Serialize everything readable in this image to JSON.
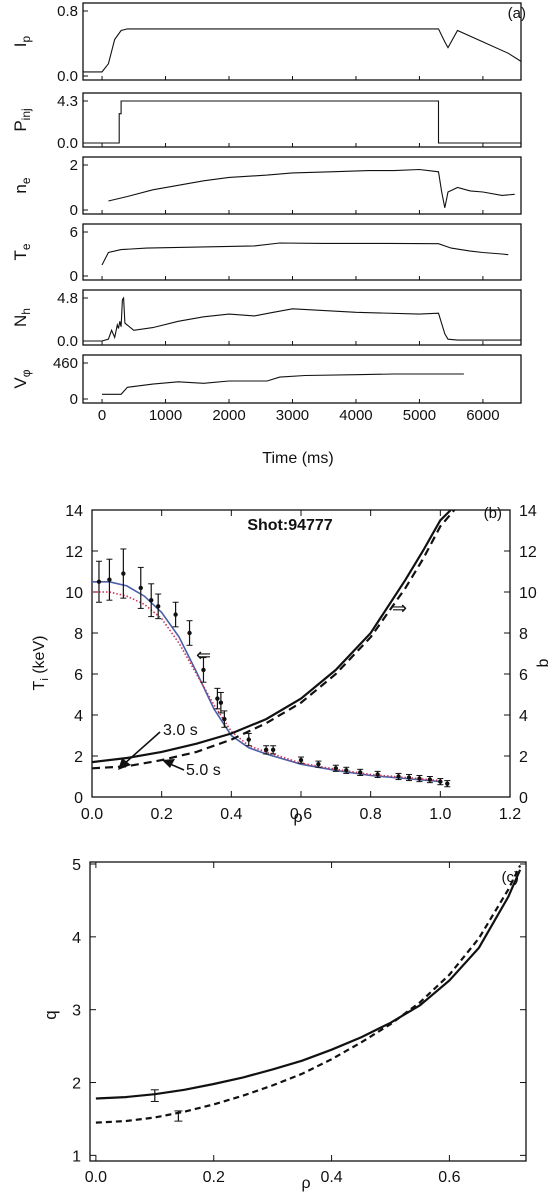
{
  "figure_labels": {
    "a": "(a)",
    "b": "(b)",
    "c": "(c)"
  },
  "chart_data": [
    {
      "type": "line",
      "panel": "a",
      "xlabel": "Time (ms)",
      "xlim": [
        -300,
        6600
      ],
      "xticks": [
        0,
        1000,
        2000,
        3000,
        4000,
        5000,
        6000
      ],
      "subplots": [
        {
          "ylabel": "I",
          "ylabel_sub": "p",
          "yticks": [
            "0.8",
            "0.0"
          ],
          "ylim": [
            0,
            0.8
          ],
          "x": [
            -300,
            0,
            100,
            200,
            300,
            400,
            1000,
            2000,
            3000,
            4000,
            5000,
            5300,
            5400,
            5450,
            5600,
            6000,
            6400,
            6600
          ],
          "y": [
            0.05,
            0.05,
            0.15,
            0.45,
            0.56,
            0.58,
            0.58,
            0.58,
            0.58,
            0.58,
            0.58,
            0.58,
            0.42,
            0.35,
            0.56,
            0.42,
            0.28,
            0.18
          ]
        },
        {
          "ylabel": "P",
          "ylabel_sub": "inj",
          "yticks": [
            "4.3",
            "0.0"
          ],
          "ylim": [
            0,
            4.3
          ],
          "x": [
            -300,
            270,
            270,
            300,
            300,
            5300,
            5300,
            6600
          ],
          "y": [
            0.0,
            0.0,
            3.0,
            3.0,
            4.3,
            4.3,
            0.0,
            0.0
          ]
        },
        {
          "ylabel": "n",
          "ylabel_sub": "e",
          "yticks": [
            "2",
            "0"
          ],
          "ylim": [
            0,
            2
          ],
          "x": [
            100,
            400,
            800,
            1200,
            1600,
            2000,
            2600,
            3000,
            3600,
            4200,
            4600,
            5000,
            5300,
            5350,
            5400,
            5450,
            5600,
            5800,
            6000,
            6300,
            6500
          ],
          "y": [
            0.4,
            0.6,
            0.9,
            1.1,
            1.3,
            1.45,
            1.55,
            1.65,
            1.7,
            1.75,
            1.75,
            1.8,
            1.7,
            0.8,
            0.1,
            0.8,
            1.0,
            0.85,
            0.8,
            0.65,
            0.7
          ]
        },
        {
          "ylabel": "T",
          "ylabel_sub": "e",
          "yticks": [
            "6",
            "0"
          ],
          "ylim": [
            0,
            6
          ],
          "x": [
            0,
            100,
            300,
            700,
            1200,
            1800,
            2400,
            2800,
            3500,
            4500,
            5300,
            5500,
            5800,
            6000,
            6300,
            6400
          ],
          "y": [
            1.5,
            3.2,
            3.6,
            3.8,
            3.9,
            4.0,
            4.1,
            4.5,
            4.45,
            4.45,
            4.4,
            3.8,
            3.4,
            3.2,
            3.0,
            2.9
          ]
        },
        {
          "ylabel": "N",
          "ylabel_sub": "h",
          "yticks": [
            "4.8",
            "0.0"
          ],
          "ylim": [
            0,
            4.8
          ],
          "x": [
            -300,
            0,
            100,
            150,
            200,
            240,
            260,
            280,
            300,
            320,
            340,
            360,
            500,
            800,
            1200,
            1600,
            2000,
            2400,
            2700,
            3000,
            4000,
            5000,
            5300,
            5400,
            5450,
            5600,
            6600
          ],
          "y": [
            0.0,
            0.0,
            0.2,
            1.2,
            0.4,
            1.8,
            1.4,
            2.2,
            1.6,
            4.6,
            4.8,
            2.0,
            1.2,
            1.5,
            2.2,
            2.7,
            3.0,
            2.8,
            3.2,
            3.6,
            3.2,
            3.0,
            3.1,
            0.8,
            0.2,
            0.1,
            0.1
          ]
        },
        {
          "ylabel": "V",
          "ylabel_sub": "φ",
          "yticks": [
            "460",
            "0"
          ],
          "ylim": [
            0,
            460
          ],
          "x": [
            0,
            300,
            400,
            800,
            1200,
            1600,
            2000,
            2600,
            2800,
            3200,
            4000,
            4600,
            5000,
            5700
          ],
          "y": [
            60,
            60,
            150,
            190,
            220,
            200,
            230,
            230,
            280,
            300,
            310,
            320,
            320,
            320
          ]
        }
      ]
    },
    {
      "type": "line",
      "panel": "b",
      "title": "Shot:94777",
      "xlabel": "ρ",
      "ylabel": "T",
      "ylabel_sub": "i",
      "ylabel_unit": "(keV)",
      "y2label": "b",
      "xlim": [
        0,
        1.2
      ],
      "ylim": [
        0,
        14
      ],
      "xticks": [
        "0.0",
        "0.2",
        "0.4",
        "0.6",
        "0.8",
        "1.0",
        "1.2"
      ],
      "yticks": [
        "0",
        "2",
        "4",
        "6",
        "8",
        "10",
        "12",
        "14"
      ],
      "annotations": {
        "t1": "3.0 s",
        "t2": "5.0 s",
        "arrow_left": "⇐",
        "arrow_right": "⇒"
      },
      "series": [
        {
          "color": "#4a5fa8",
          "x": [
            0.0,
            0.05,
            0.1,
            0.15,
            0.2,
            0.25,
            0.3,
            0.35,
            0.4,
            0.45,
            0.5,
            0.6,
            0.7,
            0.8,
            0.9,
            1.0
          ],
          "y": [
            10.5,
            10.5,
            10.3,
            9.8,
            9.0,
            7.8,
            6.1,
            4.3,
            3.0,
            2.4,
            2.1,
            1.6,
            1.3,
            1.05,
            0.9,
            0.75
          ]
        },
        {
          "color": "#cc3355",
          "x": [
            0.0,
            0.05,
            0.1,
            0.15,
            0.2,
            0.25,
            0.3,
            0.35,
            0.4,
            0.45,
            0.5,
            0.6,
            0.7,
            0.8,
            0.9,
            1.0
          ],
          "y": [
            10.0,
            10.0,
            9.8,
            9.4,
            8.7,
            7.5,
            6.0,
            4.5,
            3.2,
            2.5,
            2.2,
            1.65,
            1.35,
            1.1,
            0.95,
            0.8
          ]
        },
        {
          "axis": "b",
          "style": "solid",
          "x": [
            0.0,
            0.1,
            0.2,
            0.3,
            0.4,
            0.5,
            0.6,
            0.7,
            0.8,
            0.9,
            0.95,
            1.0,
            1.03
          ],
          "y": [
            1.7,
            1.9,
            2.2,
            2.6,
            3.1,
            3.8,
            4.8,
            6.2,
            8.0,
            10.6,
            12.0,
            13.5,
            14.0
          ]
        },
        {
          "axis": "b",
          "style": "dashed",
          "x": [
            0.0,
            0.1,
            0.2,
            0.3,
            0.4,
            0.5,
            0.6,
            0.7,
            0.8,
            0.9,
            0.95,
            1.0,
            1.04
          ],
          "y": [
            1.4,
            1.5,
            1.8,
            2.2,
            2.8,
            3.6,
            4.6,
            6.0,
            7.8,
            10.2,
            11.6,
            13.2,
            14.0
          ]
        }
      ],
      "points": [
        {
          "x": 0.02,
          "y": 10.5,
          "err": 1.0
        },
        {
          "x": 0.05,
          "y": 10.6,
          "err": 1.0
        },
        {
          "x": 0.09,
          "y": 10.9,
          "err": 1.2
        },
        {
          "x": 0.14,
          "y": 10.2,
          "err": 1.0
        },
        {
          "x": 0.17,
          "y": 9.6,
          "err": 0.8
        },
        {
          "x": 0.19,
          "y": 9.3,
          "err": 0.6
        },
        {
          "x": 0.24,
          "y": 8.9,
          "err": 0.6
        },
        {
          "x": 0.28,
          "y": 8.0,
          "err": 0.6
        },
        {
          "x": 0.32,
          "y": 6.2,
          "err": 0.6
        },
        {
          "x": 0.36,
          "y": 4.8,
          "err": 0.5
        },
        {
          "x": 0.37,
          "y": 4.6,
          "err": 0.5
        },
        {
          "x": 0.38,
          "y": 3.8,
          "err": 0.4
        },
        {
          "x": 0.45,
          "y": 2.8,
          "err": 0.3
        },
        {
          "x": 0.5,
          "y": 2.3,
          "err": 0.2
        },
        {
          "x": 0.52,
          "y": 2.3,
          "err": 0.2
        },
        {
          "x": 0.6,
          "y": 1.8,
          "err": 0.15
        },
        {
          "x": 0.65,
          "y": 1.6,
          "err": 0.15
        },
        {
          "x": 0.7,
          "y": 1.4,
          "err": 0.15
        },
        {
          "x": 0.73,
          "y": 1.3,
          "err": 0.15
        },
        {
          "x": 0.77,
          "y": 1.2,
          "err": 0.15
        },
        {
          "x": 0.82,
          "y": 1.1,
          "err": 0.15
        },
        {
          "x": 0.88,
          "y": 1.0,
          "err": 0.15
        },
        {
          "x": 0.91,
          "y": 0.95,
          "err": 0.15
        },
        {
          "x": 0.94,
          "y": 0.9,
          "err": 0.15
        },
        {
          "x": 0.97,
          "y": 0.85,
          "err": 0.15
        },
        {
          "x": 1.0,
          "y": 0.75,
          "err": 0.15
        },
        {
          "x": 1.02,
          "y": 0.65,
          "err": 0.15
        }
      ]
    },
    {
      "type": "line",
      "panel": "c",
      "xlabel": "ρ",
      "ylabel": "q",
      "xlim": [
        -0.01,
        0.73
      ],
      "ylim": [
        1,
        5
      ],
      "xticks": [
        "0.0",
        "0.2",
        "0.4",
        "0.6"
      ],
      "yticks": [
        "1",
        "2",
        "3",
        "4",
        "5"
      ],
      "series": [
        {
          "style": "solid",
          "x": [
            0.0,
            0.05,
            0.1,
            0.15,
            0.2,
            0.25,
            0.3,
            0.35,
            0.4,
            0.45,
            0.5,
            0.55,
            0.6,
            0.65,
            0.7,
            0.72
          ],
          "y": [
            1.78,
            1.8,
            1.84,
            1.9,
            1.98,
            2.07,
            2.18,
            2.3,
            2.45,
            2.62,
            2.82,
            3.06,
            3.4,
            3.85,
            4.55,
            4.92
          ]
        },
        {
          "style": "dashed",
          "x": [
            0.0,
            0.05,
            0.1,
            0.15,
            0.2,
            0.25,
            0.3,
            0.35,
            0.4,
            0.45,
            0.5,
            0.55,
            0.6,
            0.65,
            0.7,
            0.72
          ],
          "y": [
            1.45,
            1.47,
            1.52,
            1.6,
            1.7,
            1.82,
            1.96,
            2.12,
            2.32,
            2.55,
            2.8,
            3.1,
            3.48,
            3.98,
            4.65,
            4.98
          ]
        }
      ],
      "points": [
        {
          "x": 0.1,
          "y": 1.82,
          "err": 0.08
        },
        {
          "x": 0.14,
          "y": 1.54,
          "err": 0.07
        }
      ]
    }
  ]
}
